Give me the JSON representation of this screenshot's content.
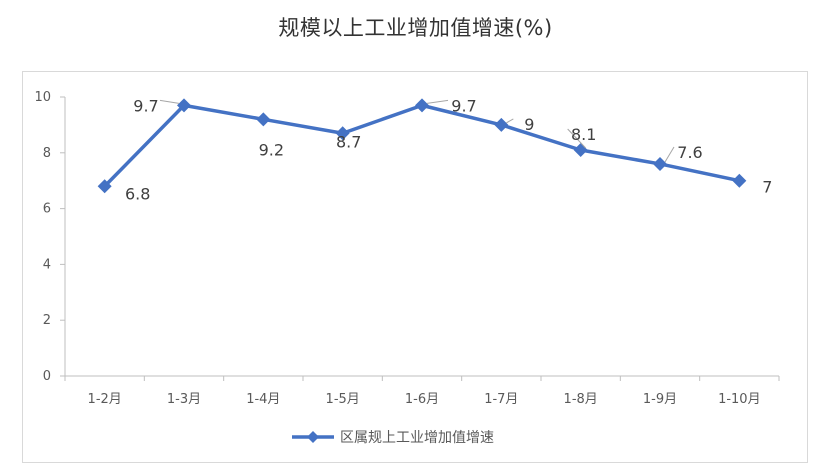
{
  "chart_data": {
    "type": "line",
    "title": "规模以上工业增加值增速(%)",
    "categories": [
      "1-2月",
      "1-3月",
      "1-4月",
      "1-5月",
      "1-6月",
      "1-7月",
      "1-8月",
      "1-9月",
      "1-10月"
    ],
    "series": [
      {
        "name": "区属规上工业增加值增速",
        "values": [
          6.8,
          9.7,
          9.2,
          8.7,
          9.7,
          9,
          8.1,
          7.6,
          7
        ]
      }
    ],
    "data_labels": [
      "6.8",
      "9.7",
      "9.2",
      "8.7",
      "9.7",
      "9",
      "8.1",
      "7.6",
      "7"
    ],
    "y_ticks": [
      "0",
      "2",
      "4",
      "6",
      "8",
      "10"
    ],
    "ylim": [
      0,
      10
    ],
    "xlabel": "",
    "ylabel": "",
    "grid": false,
    "legend_position": "bottom",
    "marker": "diamond",
    "colors": {
      "series": "#4472c4",
      "axis": "#bfbfbf",
      "leader": "#a6a6a6"
    }
  }
}
